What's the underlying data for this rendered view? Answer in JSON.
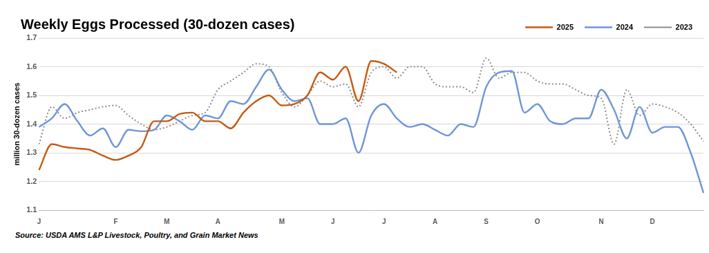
{
  "chart_data": {
    "type": "line",
    "title": "Weekly Eggs Processed (30-dozen cases)",
    "y_label": "million 30-dozen cases",
    "source": "Source: USDA AMS L&P Livestock, Poultry, and Grain Market News",
    "categories": [
      "J",
      null,
      null,
      null,
      null,
      null,
      "F",
      null,
      null,
      null,
      "M",
      null,
      null,
      null,
      "A",
      null,
      null,
      null,
      null,
      "M",
      null,
      null,
      null,
      "J",
      null,
      null,
      null,
      "J",
      null,
      null,
      null,
      "A",
      null,
      null,
      null,
      "S",
      null,
      null,
      null,
      "O",
      null,
      null,
      null,
      null,
      "N",
      null,
      null,
      null,
      "D",
      null,
      null,
      null,
      null
    ],
    "series": [
      {
        "name": "2025",
        "color": "#c55a11",
        "line_style": "solid",
        "values": [
          1.24,
          1.33,
          1.32,
          1.315,
          1.31,
          1.29,
          1.275,
          1.29,
          1.32,
          1.41,
          1.41,
          1.435,
          1.44,
          1.41,
          1.41,
          1.385,
          1.44,
          1.48,
          1.5,
          1.465,
          1.47,
          1.5,
          1.58,
          1.555,
          1.6,
          1.48,
          1.62,
          1.61,
          1.58,
          null,
          null,
          null,
          null,
          null,
          null,
          null,
          null,
          null,
          null,
          null,
          null,
          null,
          null,
          null,
          null,
          null,
          null,
          null,
          null,
          null,
          null,
          null,
          null
        ]
      },
      {
        "name": "2024",
        "color": "#6f95d8",
        "line_style": "solid",
        "values": [
          1.39,
          1.42,
          1.47,
          1.41,
          1.36,
          1.385,
          1.32,
          1.38,
          1.375,
          1.38,
          1.43,
          1.41,
          1.38,
          1.43,
          1.42,
          1.48,
          1.47,
          1.53,
          1.59,
          1.52,
          1.48,
          1.49,
          1.4,
          1.4,
          1.42,
          1.3,
          1.43,
          1.47,
          1.42,
          1.39,
          1.4,
          1.38,
          1.36,
          1.4,
          1.39,
          1.53,
          1.58,
          1.585,
          1.44,
          1.47,
          1.41,
          1.4,
          1.42,
          1.42,
          1.52,
          1.45,
          1.35,
          1.46,
          1.37,
          1.39,
          1.39,
          1.3,
          1.16
        ]
      },
      {
        "name": "2023",
        "color": "#8c8c8c",
        "line_style": "dotted",
        "values": [
          1.33,
          1.46,
          1.42,
          1.44,
          1.45,
          1.46,
          1.465,
          1.43,
          1.4,
          1.38,
          1.39,
          1.41,
          1.43,
          1.44,
          1.52,
          1.55,
          1.58,
          1.61,
          1.6,
          1.51,
          1.46,
          1.5,
          1.55,
          1.53,
          1.54,
          1.46,
          1.58,
          1.6,
          1.56,
          1.6,
          1.6,
          1.54,
          1.53,
          1.53,
          1.51,
          1.63,
          1.56,
          1.58,
          1.58,
          1.55,
          1.54,
          1.54,
          1.52,
          1.5,
          1.49,
          1.33,
          1.52,
          1.43,
          1.47,
          1.46,
          1.44,
          1.4,
          1.34
        ]
      }
    ],
    "ylim": [
      1.1,
      1.7
    ],
    "yticks": [
      1.1,
      1.2,
      1.3,
      1.4,
      1.5,
      1.6,
      1.7
    ],
    "grid": true,
    "legend": "top-right"
  }
}
